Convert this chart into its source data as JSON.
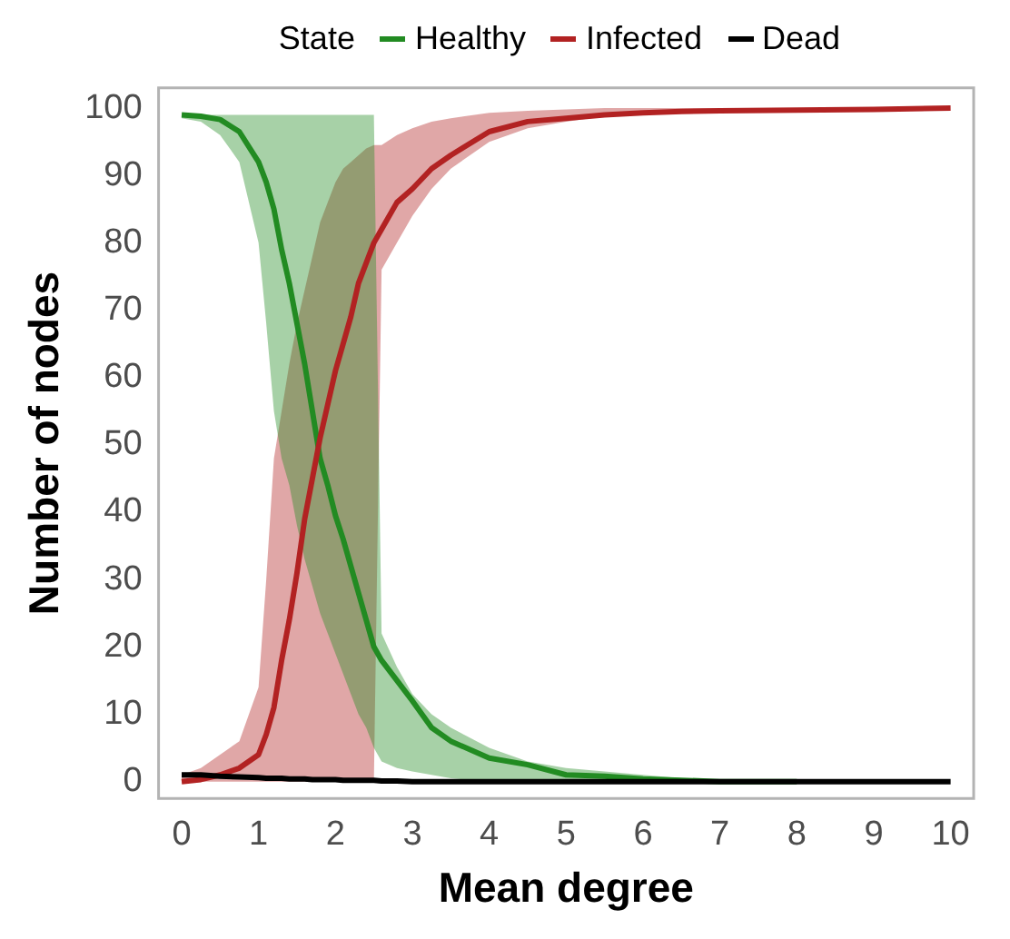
{
  "chart_data": {
    "type": "line",
    "xlabel": "Mean degree",
    "ylabel": "Number of nodes",
    "legend_title": "State",
    "legend": "top",
    "grid": false,
    "marker": "none",
    "line_style": "solid",
    "x": [
      0,
      0.25,
      0.5,
      0.75,
      1,
      1.1,
      1.2,
      1.3,
      1.4,
      1.5,
      1.6,
      1.7,
      1.8,
      1.9,
      2,
      2.1,
      2.2,
      2.3,
      2.4,
      2.5,
      2.6,
      2.8,
      3,
      3.25,
      3.5,
      4,
      4.5,
      5,
      5.5,
      6,
      6.5,
      7,
      8,
      9,
      10
    ],
    "xlim": [
      -0.3,
      10.3
    ],
    "xticks": [
      0,
      1,
      2,
      3,
      4,
      5,
      6,
      7,
      8,
      9,
      10
    ],
    "ylim": [
      -2.5,
      103
    ],
    "yticks": [
      0,
      10,
      20,
      30,
      40,
      50,
      60,
      70,
      80,
      90,
      100
    ],
    "series": [
      {
        "name": "Healthy",
        "color": "#228b22",
        "values": [
          99,
          98.8,
          98.3,
          96.5,
          92,
          89,
          85,
          79,
          74,
          68,
          62,
          55,
          48,
          44,
          39.5,
          36,
          32,
          28,
          24,
          20,
          18,
          15,
          12,
          8,
          6,
          3.5,
          2.5,
          1,
          0.8,
          0.4,
          0.2,
          0,
          0,
          null,
          null
        ],
        "lower": [
          98.5,
          98,
          96,
          92,
          80,
          68,
          55,
          48,
          44,
          38,
          33,
          29,
          25,
          22,
          19,
          16,
          13,
          10,
          8,
          5,
          3,
          2,
          1.5,
          1,
          0.5,
          0,
          0,
          0,
          0,
          0,
          0,
          0,
          0,
          0,
          0
        ],
        "upper": [
          99,
          99,
          99,
          99,
          99,
          99,
          99,
          99,
          99,
          99,
          99,
          99,
          99,
          99,
          99,
          99,
          99,
          99,
          99,
          99,
          22,
          17,
          13,
          10,
          8,
          5,
          3,
          2,
          1.5,
          1,
          0.5,
          0,
          0,
          0,
          0
        ]
      },
      {
        "name": "Infected",
        "color": "#b22222",
        "values": [
          0,
          0.3,
          1,
          2,
          4,
          7,
          11,
          18,
          24,
          31,
          39,
          45,
          51,
          56,
          61,
          65,
          69,
          74,
          77,
          80,
          82,
          86,
          88,
          91,
          93,
          96.5,
          98,
          98.5,
          99,
          99.3,
          99.5,
          99.6,
          99.7,
          99.8,
          100
        ],
        "lower": [
          0,
          0,
          0,
          0,
          0,
          0,
          0,
          0,
          0,
          0,
          0,
          0,
          0,
          0,
          0,
          0,
          0,
          0,
          0,
          0,
          76,
          80,
          84,
          88,
          91,
          95,
          97,
          98,
          98.8,
          99.2,
          99.5,
          99.6,
          99.7,
          99.8,
          100
        ],
        "upper": [
          1,
          2,
          4,
          6,
          14,
          30,
          48,
          55,
          62,
          68,
          73,
          78,
          83,
          86,
          89,
          91,
          92,
          93,
          94,
          94.5,
          94.5,
          96,
          97,
          98,
          98.5,
          99.3,
          99.6,
          99.8,
          100,
          100,
          100,
          100,
          100,
          100,
          100
        ]
      },
      {
        "name": "Dead",
        "color": "#000000",
        "values": [
          1,
          1,
          0.8,
          0.7,
          0.6,
          0.5,
          0.5,
          0.5,
          0.4,
          0.4,
          0.4,
          0.3,
          0.3,
          0.3,
          0.3,
          0.2,
          0.2,
          0.2,
          0.2,
          0.2,
          0.1,
          0.1,
          0,
          0,
          0,
          0,
          0,
          0,
          0,
          0,
          0,
          0,
          0,
          0,
          0
        ]
      }
    ]
  }
}
